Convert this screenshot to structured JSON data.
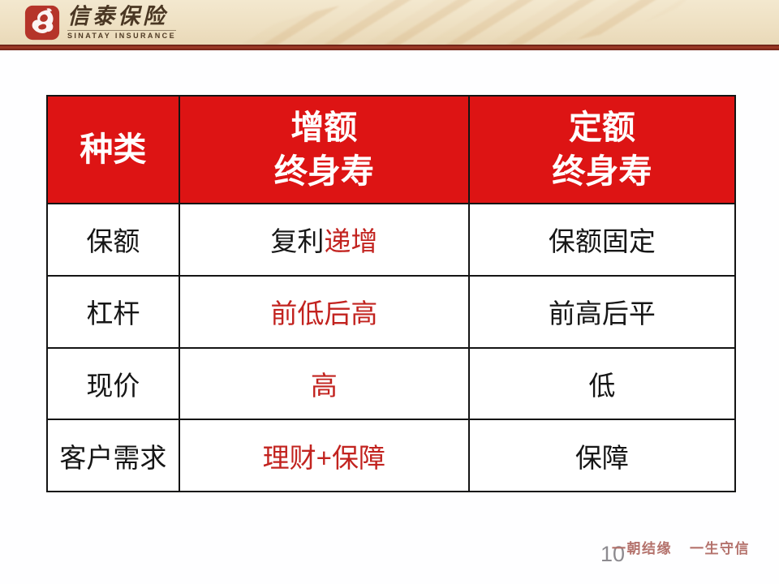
{
  "header": {
    "brand_zh": "信泰保险",
    "brand_en": "SINATAY INSURANCE"
  },
  "table": {
    "columns": [
      "种类",
      "增额\n终身寿",
      "定额\n终身寿"
    ],
    "rows": [
      {
        "label": "保额",
        "increasing": [
          {
            "text": "复利",
            "red": false
          },
          {
            "text": "递增",
            "red": true
          }
        ],
        "fixed": [
          {
            "text": "保额固定",
            "red": false
          }
        ]
      },
      {
        "label": "杠杆",
        "increasing": [
          {
            "text": "前低后高",
            "red": true
          }
        ],
        "fixed": [
          {
            "text": "前高后平",
            "red": false
          }
        ]
      },
      {
        "label": "现价",
        "increasing": [
          {
            "text": "高",
            "red": true
          }
        ],
        "fixed": [
          {
            "text": "低",
            "red": false
          }
        ]
      },
      {
        "label": "客户需求",
        "increasing": [
          {
            "text": "理财+保障",
            "red": true
          }
        ],
        "fixed": [
          {
            "text": "保障",
            "red": false
          }
        ]
      }
    ]
  },
  "footer": {
    "slogan_1": "一朝结缘",
    "slogan_2": "一生守信",
    "page_number": "10"
  },
  "colors": {
    "header_red": "#dd1414",
    "accent_red": "#c2231f",
    "maroon_line": "#8c2b1e",
    "band_beige": "#eee0c2",
    "brand_brown": "#4a3723",
    "footer_rose": "#b4726c",
    "page_gray": "#8d8b90"
  }
}
